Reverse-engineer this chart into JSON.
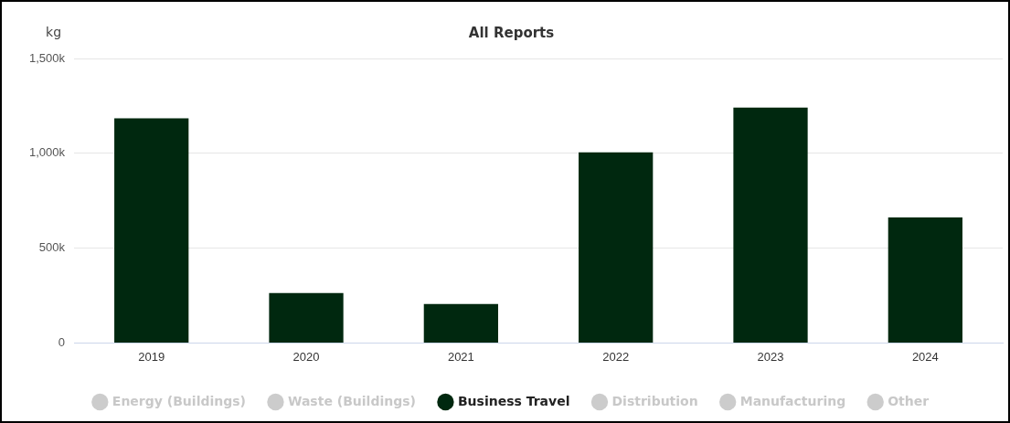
{
  "chart_data": {
    "type": "bar",
    "title": "All Reports",
    "ylabel": "kg",
    "categories": [
      "2019",
      "2020",
      "2021",
      "2022",
      "2023",
      "2024"
    ],
    "series": [
      {
        "name": "Energy (Buildings)",
        "color": "#cccccc",
        "values": [
          null,
          null,
          null,
          null,
          null,
          null
        ]
      },
      {
        "name": "Waste (Buildings)",
        "color": "#cccccc",
        "values": [
          null,
          null,
          null,
          null,
          null,
          null
        ]
      },
      {
        "name": "Business Travel",
        "color": "#00280f",
        "values": [
          1185000,
          263000,
          206000,
          1005000,
          1241000,
          662000
        ]
      },
      {
        "name": "Distribution",
        "color": "#cccccc",
        "values": [
          null,
          null,
          null,
          null,
          null,
          null
        ]
      },
      {
        "name": "Manufacturing",
        "color": "#cccccc",
        "values": [
          null,
          null,
          null,
          null,
          null,
          null
        ]
      },
      {
        "name": "Other",
        "color": "#cccccc",
        "values": [
          null,
          null,
          null,
          null,
          null,
          null
        ]
      }
    ],
    "ylim": [
      0,
      1500000
    ],
    "yticks": [
      0,
      {
        "value": 500000,
        "label": "500k"
      },
      {
        "value": 1000000,
        "label": "1,000k"
      },
      {
        "value": 1500000,
        "label": "1,500k"
      }
    ],
    "grid": "y",
    "legend": "bottom"
  }
}
